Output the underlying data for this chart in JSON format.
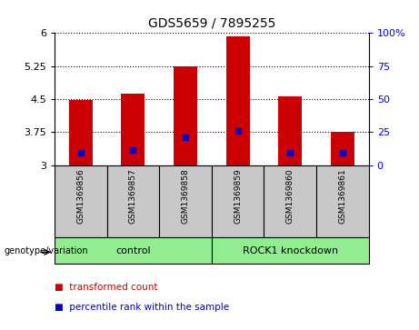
{
  "title": "GDS5659 / 7895255",
  "samples": [
    "GSM1369856",
    "GSM1369857",
    "GSM1369858",
    "GSM1369859",
    "GSM1369860",
    "GSM1369861"
  ],
  "transformed_counts": [
    4.48,
    4.63,
    5.25,
    5.93,
    4.55,
    3.75
  ],
  "percentile_ranks": [
    3.28,
    3.35,
    3.62,
    3.78,
    3.28,
    3.28
  ],
  "y_min": 3,
  "y_max": 6,
  "y_ticks_left": [
    3,
    3.75,
    4.5,
    5.25,
    6
  ],
  "y_ticks_right": [
    0,
    25,
    50,
    75,
    100
  ],
  "y_ticks_right_labels": [
    "0",
    "25",
    "50",
    "75",
    "100%"
  ],
  "bar_color": "#cc0000",
  "dot_color": "#0000cc",
  "bar_width": 0.45,
  "groups": [
    {
      "label": "control",
      "indices": [
        0,
        1,
        2
      ],
      "color": "#90ee90"
    },
    {
      "label": "ROCK1 knockdown",
      "indices": [
        3,
        4,
        5
      ],
      "color": "#90ee90"
    }
  ],
  "group_label_prefix": "genotype/variation",
  "legend_items": [
    {
      "label": "transformed count",
      "color": "#cc0000"
    },
    {
      "label": "percentile rank within the sample",
      "color": "#0000cc"
    }
  ],
  "title_fontsize": 10,
  "tick_fontsize": 8,
  "sample_label_fontsize": 6.5,
  "group_label_fontsize": 8,
  "group_box_color": "#c8c8c8",
  "background_color": "#ffffff",
  "plot_bg_color": "#ffffff",
  "spine_color": "#000000",
  "legend_fontsize": 7.5
}
